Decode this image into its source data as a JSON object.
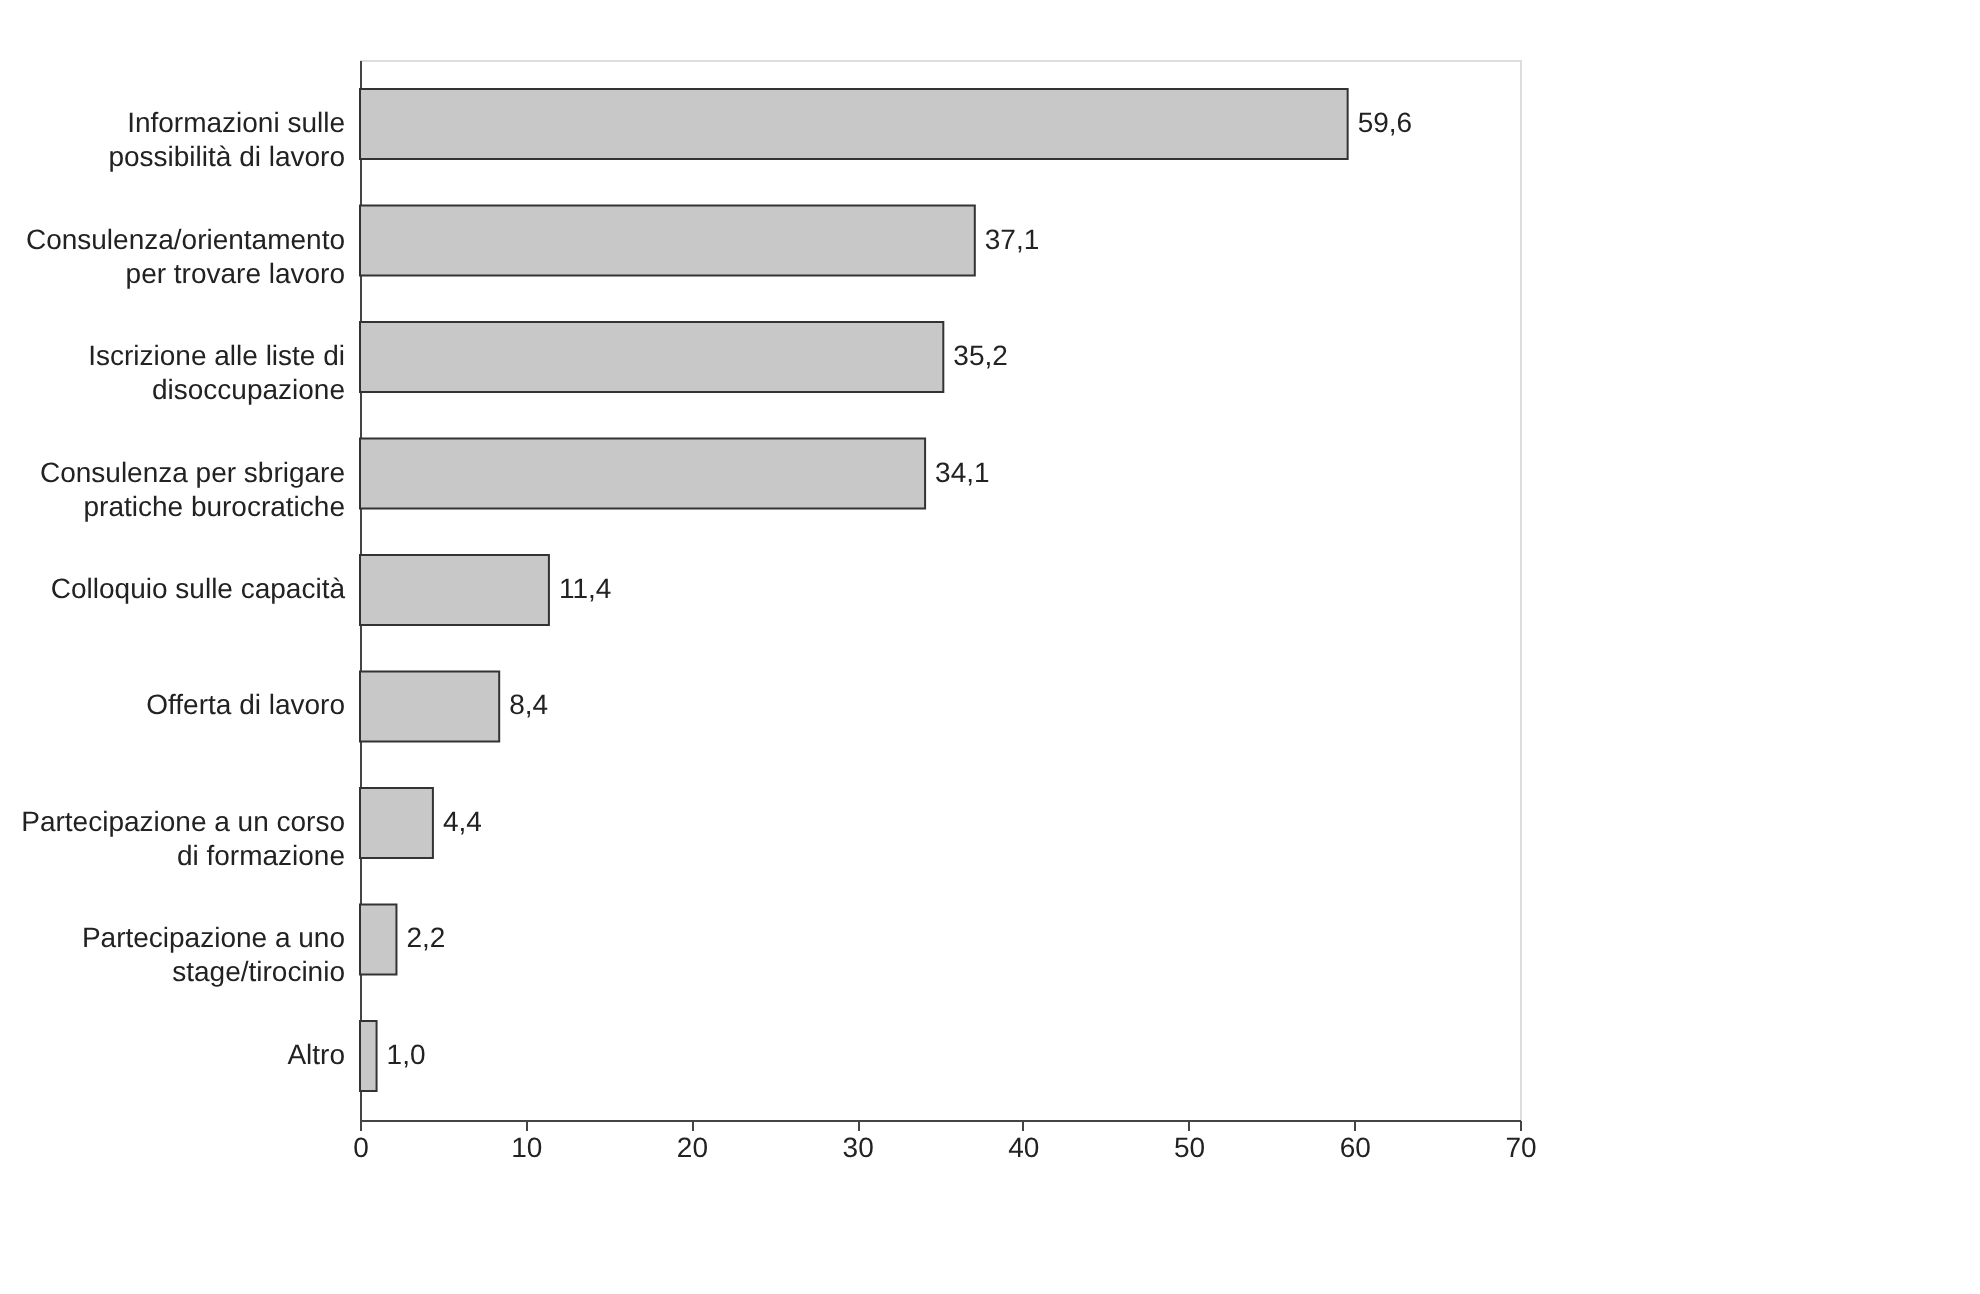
{
  "chart_data": {
    "type": "bar",
    "orientation": "horizontal",
    "categories": [
      "Informazioni sulle possibilità di lavoro",
      "Consulenza/orientamento per trovare lavoro",
      "Iscrizione alle liste di disoccupazione",
      "Consulenza per sbrigare pratiche burocratiche",
      "Colloquio sulle capacità",
      "Offerta di lavoro",
      "Partecipazione a un corso di formazione",
      "Partecipazione a uno stage/tirocinio",
      "Altro"
    ],
    "values": [
      59.6,
      37.1,
      35.2,
      34.1,
      11.4,
      8.4,
      4.4,
      2.2,
      1.0
    ],
    "value_labels": [
      "59,6",
      "37,1",
      "35,2",
      "34,1",
      "11,4",
      "8,4",
      "4,4",
      "2,2",
      "1,0"
    ],
    "color": "#c8c8c8",
    "xlim": [
      0,
      70
    ],
    "xticks": [
      0,
      10,
      20,
      30,
      40,
      50,
      60,
      70
    ],
    "grid": false
  }
}
